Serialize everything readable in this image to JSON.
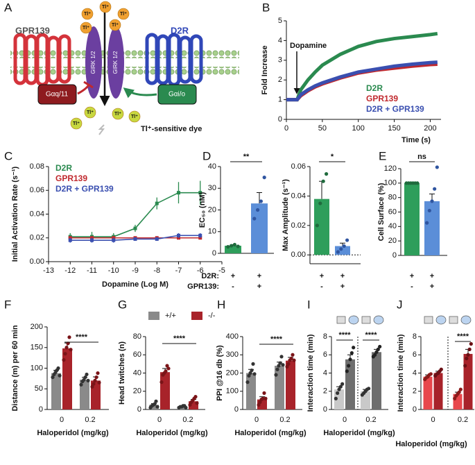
{
  "diagram": {
    "panel": "A",
    "left_receptor": "GPR139",
    "right_receptor": "D2R",
    "left_protein": "Gαq/11",
    "right_protein": "Gαi/o",
    "channel": "GIRK 1/2",
    "ion": "Tl⁺",
    "dye": "Tl⁺-sensitive dye"
  },
  "chart_data": [
    {
      "type": "line",
      "panel": "B",
      "ylabel": "Fold Increase",
      "xlabel": "Time (s)",
      "annotation": "Dopamine",
      "x": [
        0,
        10,
        15,
        20,
        30,
        40,
        50,
        75,
        100,
        125,
        150,
        175,
        200,
        210
      ],
      "series": [
        {
          "name": "D2R",
          "color": "#2a8a4f",
          "values": [
            1,
            1,
            1,
            1.5,
            2.0,
            2.4,
            2.75,
            3.3,
            3.7,
            3.95,
            4.1,
            4.2,
            4.3,
            4.35
          ]
        },
        {
          "name": "GPR139",
          "color": "#c0282d",
          "values": [
            1,
            1,
            1,
            1.2,
            1.45,
            1.65,
            1.8,
            2.1,
            2.35,
            2.5,
            2.6,
            2.7,
            2.78,
            2.8
          ]
        },
        {
          "name": "D2R + GPR139",
          "color": "#3a4fb0",
          "values": [
            1,
            1,
            1,
            1.25,
            1.5,
            1.7,
            1.85,
            2.15,
            2.4,
            2.55,
            2.7,
            2.8,
            2.88,
            2.9
          ]
        }
      ],
      "xlim": [
        0,
        215
      ],
      "xticks": [
        0,
        50,
        100,
        150,
        200
      ],
      "ylim": [
        0,
        5
      ],
      "yticks": [
        0,
        1,
        2,
        3,
        4,
        5
      ],
      "legend": "lower right"
    },
    {
      "type": "line",
      "panel": "C",
      "ylabel": "Initial Activation Rate (s⁻¹)",
      "xlabel": "Dopamine (Log M)",
      "x": [
        -12,
        -11,
        -10,
        -9,
        -8,
        -7,
        -6
      ],
      "series": [
        {
          "name": "D2R",
          "color": "#2a8a4f",
          "values": [
            0.021,
            0.021,
            0.021,
            0.028,
            0.049,
            0.058,
            0.058
          ],
          "errors": [
            0.003,
            0.004,
            0.003,
            0.003,
            0.005,
            0.009,
            0.01
          ]
        },
        {
          "name": "GPR139",
          "color": "#c0282d",
          "values": [
            0.02,
            0.02,
            0.02,
            0.02,
            0.02,
            0.02,
            0.02
          ],
          "errors": [
            0.001,
            0.001,
            0.001,
            0.001,
            0.001,
            0.001,
            0.001
          ]
        },
        {
          "name": "D2R + GPR139",
          "color": "#3a4fb0",
          "values": [
            0.018,
            0.018,
            0.018,
            0.019,
            0.019,
            0.022,
            0.022
          ],
          "errors": [
            0.002,
            0.002,
            0.002,
            0.001,
            0.001,
            0.002,
            0.002
          ]
        }
      ],
      "xlim": [
        -13,
        -5
      ],
      "xticks": [
        -13,
        -12,
        -11,
        -10,
        -9,
        -8,
        -7,
        -6,
        -5
      ],
      "ylim": [
        0,
        0.08
      ],
      "yticks": [
        {
          "value": 0,
          "label": "0.00"
        },
        {
          "value": 0.02,
          "label": "0.02"
        },
        {
          "value": 0.04,
          "label": "0.04"
        },
        {
          "value": 0.06,
          "label": "0.06"
        },
        {
          "value": 0.08,
          "label": "0.08"
        }
      ],
      "legend": "upper left",
      "markers": true
    },
    {
      "type": "bar",
      "panel": "D",
      "ylabel": "EC₅₀ (nM)",
      "series": [
        {
          "colors": [
            "#2e9e5b",
            "#5b8ed8"
          ],
          "point_colors": [
            "#1f6b3d",
            "#2f55a0"
          ],
          "values": [
            3.5,
            23
          ],
          "errors": [
            0.5,
            5
          ],
          "points": [
            [
              3,
              3.5,
              4,
              3.2
            ],
            [
              16,
              20,
              24,
              35
            ]
          ]
        }
      ],
      "ylim": [
        0,
        40
      ],
      "yticks": [
        0,
        10,
        20,
        30,
        40
      ],
      "significance": [
        "**"
      ],
      "condition_names": [
        "D2R:",
        "GPR139:"
      ],
      "conditions": [
        [
          "+",
          "+"
        ],
        [
          "-",
          "+"
        ]
      ]
    },
    {
      "type": "bar",
      "ylabel": "Max Amplitude (s⁻¹)",
      "series": [
        {
          "colors": [
            "#2e9e5b",
            "#5b8ed8"
          ],
          "point_colors": [
            "#1f6b3d",
            "#2f55a0"
          ],
          "values": [
            0.038,
            0.006
          ],
          "errors": [
            0.012,
            0.002
          ],
          "points": [
            [
              0.02,
              0.035,
              0.05,
              0.055
            ],
            [
              0.002,
              0.004,
              0.006,
              0.01
            ]
          ]
        }
      ],
      "ylim": [
        -0.006,
        0.06
      ],
      "yticks": [
        {
          "value": 0,
          "label": "0.00"
        },
        {
          "value": 0.02,
          "label": "0.02"
        },
        {
          "value": 0.04,
          "label": "0.04"
        },
        {
          "value": 0.06,
          "label": "0.06"
        }
      ],
      "significance": [
        "*"
      ],
      "conditions": [
        [
          "+",
          "+"
        ],
        [
          "-",
          "+"
        ]
      ]
    },
    {
      "type": "bar",
      "panel": "E",
      "ylabel": "Cell Surface (%)",
      "series": [
        {
          "colors": [
            "#2e9e5b",
            "#5b8ed8"
          ],
          "point_colors": [
            "#1f6b3d",
            "#2f55a0"
          ],
          "values": [
            100,
            75
          ],
          "errors": [
            0,
            10
          ],
          "points": [
            [
              100,
              100,
              100,
              100,
              100,
              100
            ],
            [
              45,
              62,
              75,
              92,
              122
            ]
          ]
        }
      ],
      "ylim": [
        0,
        120
      ],
      "yticks": [
        0,
        20,
        40,
        60,
        80,
        100,
        120
      ],
      "significance": [
        "ns"
      ],
      "conditions": [
        [
          "+",
          "+"
        ],
        [
          "-",
          "+"
        ]
      ]
    },
    {
      "type": "bar",
      "panel": "F",
      "ylabel": "Distance (m) per 60 min",
      "xlabel": "Haloperidol (mg/kg)",
      "categories": [
        "0",
        "0.2"
      ],
      "series": [
        {
          "color": "#8a8a8a",
          "point_color": "#333333",
          "values": [
            88,
            72
          ],
          "errors": [
            7,
            6
          ],
          "points": [
            [
              78,
              85,
              90,
              95,
              100,
              82
            ],
            [
              60,
              68,
              72,
              78,
              85,
              70
            ]
          ]
        },
        {
          "color": "#a8232a",
          "point_color": "#7a1418",
          "values": [
            148,
            70
          ],
          "errors": [
            13,
            9
          ],
          "points": [
            [
              120,
              135,
              150,
              160,
              175,
              145
            ],
            [
              55,
              62,
              70,
              78,
              88,
              65
            ]
          ]
        }
      ],
      "ylim": [
        0,
        200
      ],
      "yticks": [
        0,
        50,
        100,
        150,
        200
      ],
      "significance": [
        "****"
      ]
    },
    {
      "type": "bar",
      "panel": "G",
      "ylabel": "Head twitches (n)",
      "xlabel": "Haloperidol (mg/kg)",
      "categories": [
        "0",
        "0.2"
      ],
      "series": [
        {
          "name": "+/+",
          "color": "#8a8a8a",
          "point_color": "#333333",
          "values": [
            5,
            3
          ],
          "errors": [
            1.5,
            0.8
          ],
          "points": [
            [
              2,
              4,
              5,
              6,
              9,
              3
            ],
            [
              2,
              3,
              3,
              4,
              4,
              2
            ]
          ]
        },
        {
          "name": "-/-",
          "color": "#a8232a",
          "point_color": "#7a1418",
          "values": [
            41,
            9
          ],
          "errors": [
            4,
            2
          ],
          "points": [
            [
              30,
              38,
              40,
              42,
              48,
              45
            ],
            [
              5,
              8,
              10,
              12,
              14,
              7
            ]
          ]
        }
      ],
      "ylim": [
        0,
        80
      ],
      "yticks": [
        0,
        20,
        40,
        60,
        80
      ],
      "significance": [
        "****"
      ],
      "legend": "top"
    },
    {
      "type": "bar",
      "panel": "H",
      "ylabel": "PPI @16 db (%)",
      "xlabel": "Haloperidol (mg/kg)",
      "categories": [
        "0",
        "0.2"
      ],
      "series": [
        {
          "color": "#8a8a8a",
          "point_color": "#333333",
          "values": [
            200,
            240
          ],
          "errors": [
            20,
            20
          ],
          "points": [
            [
              150,
              185,
              200,
              215,
              250,
              195
            ],
            [
              190,
              220,
              240,
              255,
              290,
              245
            ]
          ]
        },
        {
          "color": "#a8232a",
          "point_color": "#7a1418",
          "values": [
            55,
            268
          ],
          "errors": [
            15,
            18
          ],
          "points": [
            [
              25,
              40,
              55,
              60,
              90,
              60
            ],
            [
              235,
              250,
              270,
              280,
              300,
              270
            ]
          ]
        }
      ],
      "ylim": [
        0,
        400
      ],
      "yticks": [
        0,
        100,
        200,
        300,
        400
      ],
      "significance": [
        "****"
      ]
    },
    {
      "type": "bar",
      "panel": "I",
      "ylabel": "Interaction time (min)",
      "xlabel": "Haloperidol (mg/kg)",
      "categories": [
        "0",
        "0.2"
      ],
      "series": [
        {
          "color": "#c9c9c9",
          "point_color": "#333333",
          "values": [
            2.2,
            2.0
          ],
          "errors": [
            0.3,
            0.2
          ],
          "points": [
            [
              1.2,
              1.8,
              2.2,
              2.5,
              2.8
            ],
            [
              1.6,
              1.8,
              2.0,
              2.2,
              2.3
            ]
          ]
        },
        {
          "color": "#6e6e6e",
          "point_color": "#222222",
          "values": [
            5.5,
            6.3
          ],
          "errors": [
            0.5,
            0.3
          ],
          "points": [
            [
              4.2,
              4.8,
              5.5,
              6.2,
              6.8
            ],
            [
              5.8,
              6.0,
              6.3,
              6.6,
              6.9
            ]
          ]
        }
      ],
      "ylim": [
        0,
        8
      ],
      "yticks": [
        0,
        2,
        4,
        6,
        8
      ],
      "significance": [
        "****",
        "****"
      ]
    },
    {
      "type": "bar",
      "panel": "J",
      "ylabel": "Interaction time (min)",
      "xlabel": "Haloperidol (mg/kg)",
      "categories": [
        "0",
        "0.2"
      ],
      "series": [
        {
          "color": "#e8474c",
          "point_color": "#8b1a1a",
          "values": [
            3.6,
            1.7
          ],
          "errors": [
            0.2,
            0.2
          ],
          "points": [
            [
              3.3,
              3.5,
              3.6,
              3.8,
              3.9
            ],
            [
              1.2,
              1.5,
              1.7,
              1.9,
              2.2
            ]
          ]
        },
        {
          "color": "#a8232a",
          "point_color": "#6b1015",
          "values": [
            4.0,
            6.1
          ],
          "errors": [
            0.2,
            0.5
          ],
          "points": [
            [
              3.7,
              3.9,
              4.0,
              4.2,
              4.4
            ],
            [
              4.8,
              5.6,
              6.0,
              6.6,
              7.2
            ]
          ]
        }
      ],
      "ylim": [
        0,
        8
      ],
      "yticks": [
        0,
        2,
        4,
        6,
        8
      ],
      "significance": [
        "****"
      ]
    }
  ]
}
